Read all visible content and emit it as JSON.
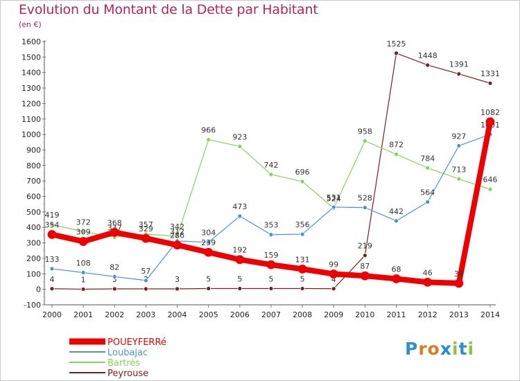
{
  "title": "Evolution du Montant de la Dette par Habitant",
  "subtitle": "(en €)",
  "logo": {
    "letters": [
      "P",
      "r",
      "o",
      "x",
      "i",
      "t",
      "i"
    ],
    "colors": [
      "#2f8fd0",
      "#e07a1f",
      "#e07a1f",
      "#1f8fd0",
      "#8fc43c",
      "#2f8fd0",
      "#8fc43c"
    ]
  },
  "chart_data": {
    "type": "line",
    "title": "Evolution du Montant de la Dette par Habitant",
    "ylabel": "(en €)",
    "xlabel": "",
    "ylim": [
      -100,
      1600
    ],
    "yticks": [
      -100,
      0,
      100,
      200,
      300,
      400,
      500,
      600,
      700,
      800,
      900,
      1000,
      1100,
      1200,
      1300,
      1400,
      1500,
      1600
    ],
    "x": [
      "2000",
      "2001",
      "2002",
      "2003",
      "2004",
      "2005",
      "2006",
      "2007",
      "2008",
      "2009",
      "2010",
      "2011",
      "2012",
      "2013",
      "2014"
    ],
    "grid": false,
    "legend_position": "bottom-left",
    "series": [
      {
        "name": "Peyrouse",
        "color": "#7a1f1f",
        "width": 1.2,
        "values": [
          4,
          1,
          3,
          3,
          3,
          5,
          5,
          5,
          5,
          4,
          219,
          1525,
          1448,
          1391,
          1331
        ],
        "labels": [
          "4",
          "1",
          "3",
          "3",
          "3",
          "5",
          "5",
          "5",
          "5",
          "4",
          "219",
          "1525",
          "1448",
          "1391",
          "1331"
        ]
      },
      {
        "name": "Bartrès",
        "color": "#86d25a",
        "width": 1.2,
        "values": [
          419,
          372,
          337,
          357,
          342,
          966,
          923,
          742,
          696,
          524,
          958,
          872,
          784,
          713,
          646
        ],
        "labels": [
          "419",
          "372",
          "337",
          "357",
          "342",
          "966",
          "923",
          "742",
          "696",
          "524",
          "958",
          "872",
          "784",
          "713",
          "646"
        ]
      },
      {
        "name": "Loubajac",
        "color": "#4a90d9",
        "width": 1.2,
        "values": [
          133,
          108,
          82,
          57,
          312,
          304,
          473,
          353,
          356,
          531,
          528,
          442,
          564,
          927,
          1001
        ],
        "labels": [
          "133",
          "108",
          "82",
          "57",
          "312",
          "304",
          "473",
          "353",
          "356",
          "531",
          "528",
          "442",
          "564",
          "927",
          "1001"
        ]
      },
      {
        "name": "POUEYFERRé",
        "color": "#ee0000",
        "width": 8,
        "values": [
          354,
          309,
          368,
          329,
          286,
          239,
          192,
          159,
          131,
          99,
          87,
          68,
          46,
          39,
          1082
        ],
        "labels": [
          "354",
          "309",
          "368",
          "329",
          "286",
          "239",
          "192",
          "159",
          "131",
          "99",
          "87",
          "68",
          "46",
          "39",
          "1082"
        ]
      }
    ]
  }
}
